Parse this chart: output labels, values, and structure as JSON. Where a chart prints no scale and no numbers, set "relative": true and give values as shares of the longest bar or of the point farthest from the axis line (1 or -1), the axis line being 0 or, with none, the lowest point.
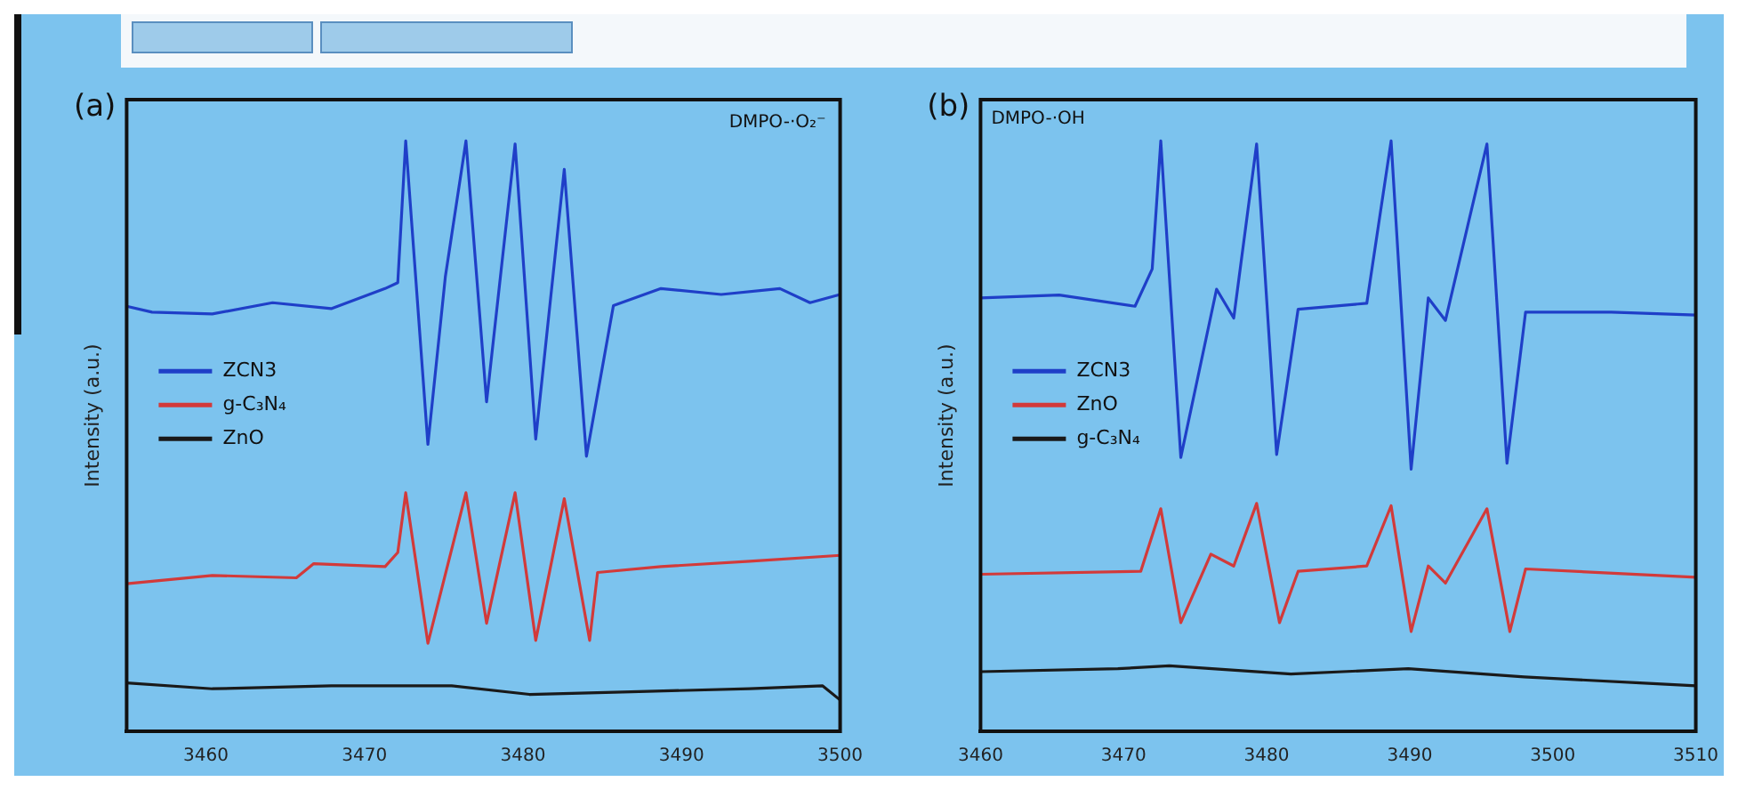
{
  "chart_data": [
    {
      "type": "line",
      "title": "(a)",
      "ylabel": "Intensity (a.u.)",
      "relative": true,
      "annotations": [
        "DMPO-·O₂⁻"
      ],
      "xlim": [
        3455,
        3500
      ],
      "xticks": [
        3460,
        3470,
        3480,
        3490,
        3500
      ],
      "legend": "left",
      "grid": false,
      "marker": "none",
      "series": [
        {
          "name": "ZCN3",
          "color": "#1f3fc8",
          "x": [
            3455,
            3456.6,
            3460.4,
            3464.2,
            3467.9,
            3471.3,
            3472.1,
            3472.6,
            3474.0,
            3475.1,
            3476.4,
            3477.7,
            3479.5,
            3480.8,
            3482.6,
            3484.0,
            3485.7,
            3488.7,
            3492.5,
            3496.2,
            3498.1,
            3500
          ],
          "values": [
            0.72,
            0.71,
            0.707,
            0.726,
            0.716,
            0.75,
            0.76,
            1.0,
            0.486,
            0.77,
            1.0,
            0.558,
            0.995,
            0.495,
            0.952,
            0.466,
            0.721,
            0.75,
            0.74,
            0.75,
            0.726,
            0.74
          ]
        },
        {
          "name": "g-C₃N₄",
          "color": "#d23a3a",
          "x": [
            3455,
            3460.4,
            3465.7,
            3466.8,
            3471.3,
            3472.1,
            3472.6,
            3474.0,
            3476.4,
            3477.7,
            3479.5,
            3480.8,
            3482.6,
            3484.2,
            3484.7,
            3488.7,
            3494.3,
            3500
          ],
          "values": [
            0.25,
            0.264,
            0.26,
            0.284,
            0.279,
            0.303,
            0.404,
            0.149,
            0.404,
            0.183,
            0.404,
            0.154,
            0.394,
            0.154,
            0.269,
            0.279,
            0.288,
            0.298
          ]
        },
        {
          "name": "ZnO",
          "color": "#1a1a1a",
          "x": [
            3455,
            3460.4,
            3467.9,
            3475.5,
            3480.4,
            3486.8,
            3494.3,
            3498.9,
            3500
          ],
          "values": [
            0.082,
            0.072,
            0.077,
            0.077,
            0.0625,
            0.067,
            0.072,
            0.077,
            0.053
          ]
        }
      ]
    },
    {
      "type": "line",
      "title": "(b)",
      "ylabel": "Intensity (a.u.)",
      "relative": true,
      "annotations": [
        "DMPO-·OH"
      ],
      "xlim": [
        3460,
        3510
      ],
      "xticks": [
        3460,
        3470,
        3480,
        3490,
        3500,
        3510
      ],
      "legend": "left",
      "grid": false,
      "marker": "none",
      "series": [
        {
          "name": "ZCN3",
          "color": "#1f3fc8",
          "x": [
            3460,
            3465.5,
            3470.8,
            3472,
            3472.6,
            3474,
            3476.5,
            3477.7,
            3479.3,
            3480.7,
            3482.2,
            3487,
            3488.7,
            3490.1,
            3491.3,
            3492.5,
            3495.4,
            3496.8,
            3498.1,
            3504.1,
            3510
          ],
          "values": [
            0.734,
            0.739,
            0.72,
            0.783,
            1.0,
            0.464,
            0.749,
            0.7,
            0.995,
            0.469,
            0.715,
            0.725,
            1.0,
            0.444,
            0.734,
            0.696,
            0.995,
            0.454,
            0.71,
            0.71,
            0.705
          ]
        },
        {
          "name": "ZnO",
          "color": "#d23a3a",
          "x": [
            3460,
            3471.2,
            3472.6,
            3474,
            3476.1,
            3477.7,
            3479.3,
            3480.9,
            3482.2,
            3487,
            3488.7,
            3490.1,
            3491.3,
            3492.5,
            3495.4,
            3497,
            3498.1,
            3510
          ],
          "values": [
            0.266,
            0.271,
            0.377,
            0.184,
            0.3,
            0.28,
            0.386,
            0.184,
            0.271,
            0.28,
            0.382,
            0.169,
            0.28,
            0.251,
            0.377,
            0.169,
            0.275,
            0.261
          ]
        },
        {
          "name": "g-C₃N₄",
          "color": "#1a1a1a",
          "x": [
            3460,
            3469.6,
            3473.2,
            3481.7,
            3489.9,
            3498,
            3506.1,
            3510
          ],
          "values": [
            0.101,
            0.106,
            0.111,
            0.097,
            0.106,
            0.092,
            0.082,
            0.077
          ]
        }
      ]
    }
  ]
}
